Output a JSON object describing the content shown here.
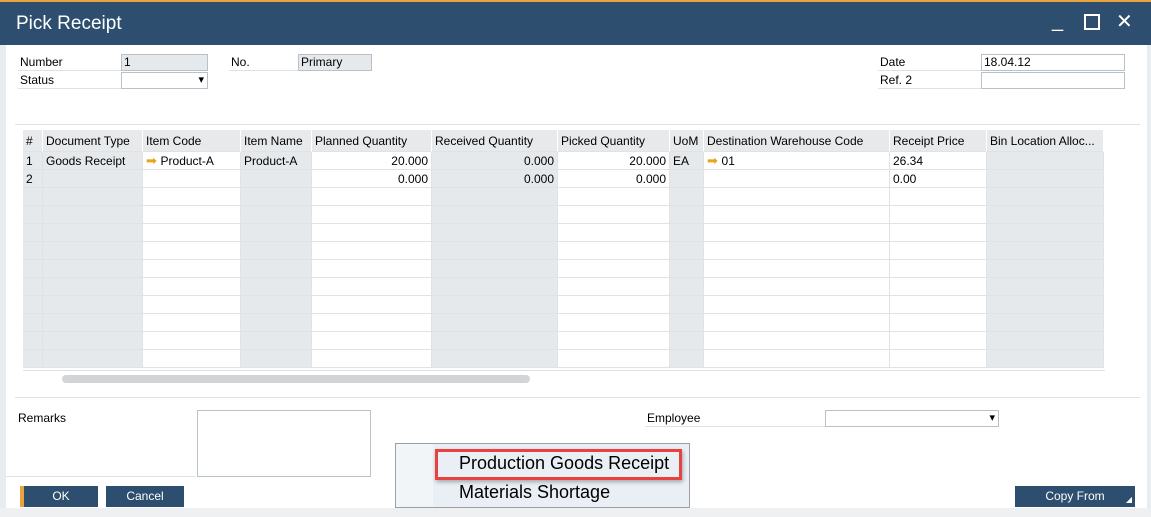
{
  "window": {
    "title": "Pick Receipt"
  },
  "header": {
    "number_label": "Number",
    "number_value": "1",
    "status_label": "Status",
    "status_value": "",
    "no_label": "No.",
    "no_value": "Primary",
    "date_label": "Date",
    "date_value": "18.04.12",
    "ref2_label": "Ref. 2",
    "ref2_value": ""
  },
  "grid": {
    "columns": [
      "#",
      "Document Type",
      "Item Code",
      "Item Name",
      "Planned Quantity",
      "Received Quantity",
      "Picked Quantity",
      "UoM",
      "Destination Warehouse Code",
      "Receipt Price",
      "Bin Location Alloc..."
    ],
    "rows": [
      [
        "1",
        "Goods Receipt",
        "Product-A",
        "Product-A",
        "20.000",
        "0.000",
        "20.000",
        "EA",
        "01",
        "26.34",
        ""
      ],
      [
        "2",
        "",
        "",
        "",
        "0.000",
        "0.000",
        "0.000",
        "",
        "",
        "0.00",
        ""
      ]
    ]
  },
  "footer": {
    "remarks_label": "Remarks",
    "employee_label": "Employee",
    "employee_value": "",
    "ok": "OK",
    "cancel": "Cancel",
    "copy_from": "Copy From"
  },
  "popup": {
    "items": [
      "Production Goods Receipt",
      "Materials Shortage"
    ]
  },
  "colors": {
    "titlebar": "#2d4e6e",
    "accent": "#e8a33c",
    "highlight": "#e8413f"
  }
}
